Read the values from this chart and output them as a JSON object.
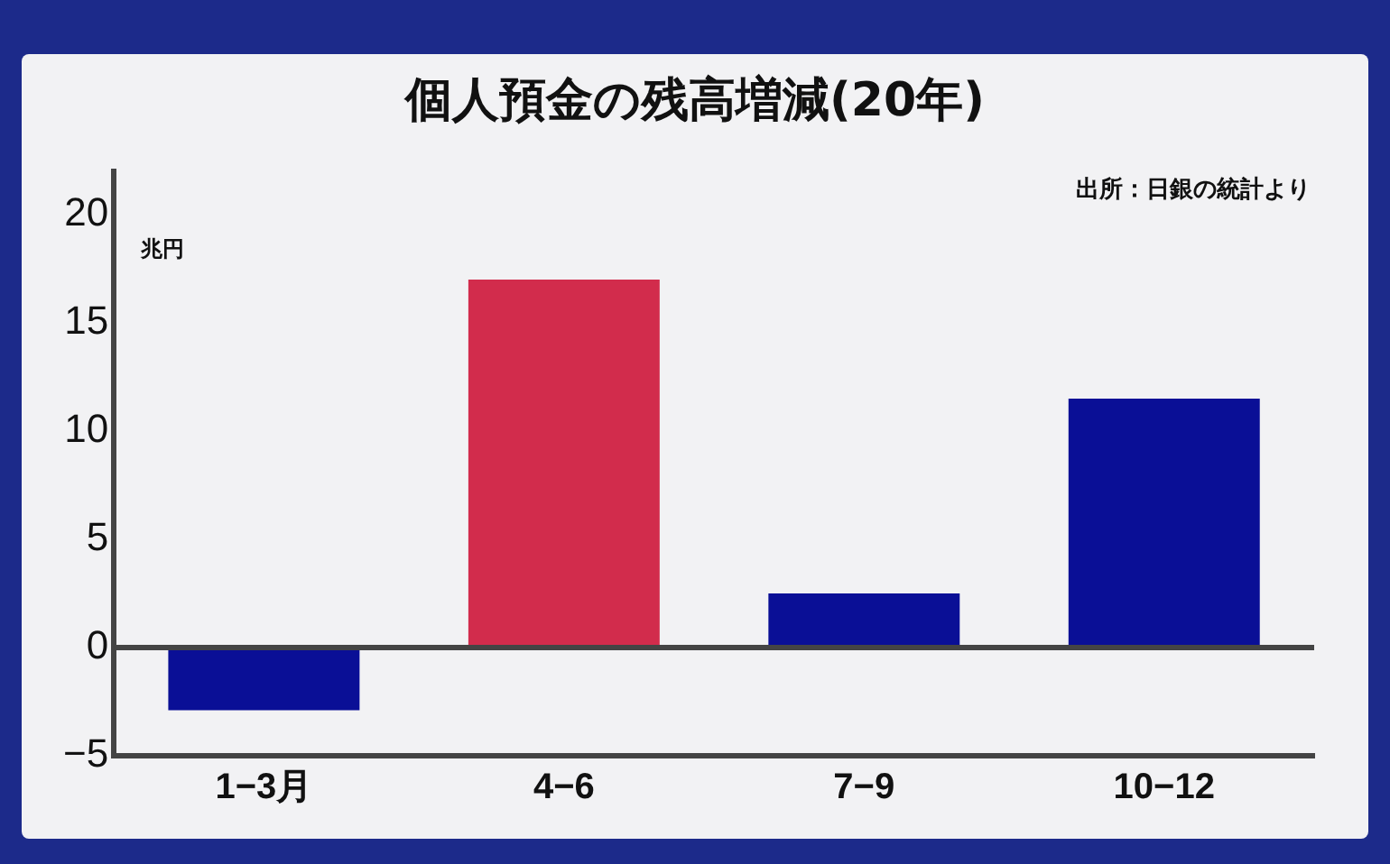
{
  "chart_data": {
    "type": "bar",
    "title": "個人預金の残高増減(20年)",
    "ylabel": "兆円",
    "categories": [
      "1−3月",
      "4−6",
      "7−9",
      "10−12"
    ],
    "values": [
      -2.9,
      17,
      2.5,
      11.5
    ],
    "colors": [
      "#0a0f96",
      "#d22c4c",
      "#0a0f96",
      "#0a0f96"
    ],
    "ylim": [
      -5,
      22
    ],
    "yticks": [
      -5,
      0,
      5,
      10,
      15,
      20
    ],
    "grid": false,
    "legend": false,
    "ref_lines": [
      {
        "axis": "y",
        "value": 0,
        "color": "#444444"
      }
    ],
    "annotations": [
      "出所：日銀の統計より"
    ]
  }
}
